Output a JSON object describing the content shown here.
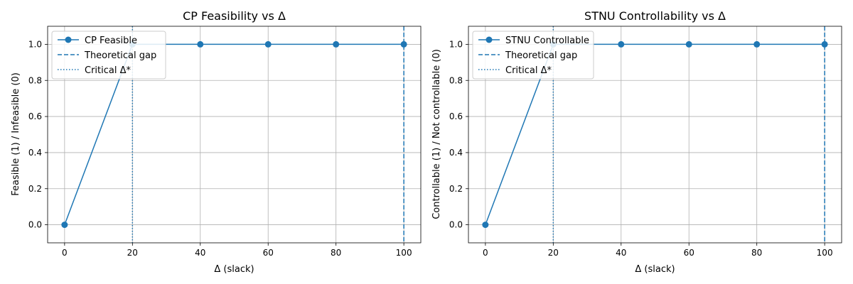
{
  "colors": {
    "series": "#1f77b4",
    "grid": "#b0b0b0",
    "axis": "#000000"
  },
  "chart_data": [
    {
      "type": "line",
      "title": "CP Feasibility vs Δ",
      "xlabel": "Δ (slack)",
      "ylabel": "Feasible (1) / Infeasible (0)",
      "xlim": [
        -5,
        105
      ],
      "ylim": [
        -0.1,
        1.1
      ],
      "xticks": [
        0,
        20,
        40,
        60,
        80,
        100
      ],
      "yticks": [
        "0.0",
        "0.2",
        "0.4",
        "0.6",
        "0.8",
        "1.0"
      ],
      "grid": true,
      "legend_position": "top-left",
      "series": [
        {
          "name": "CP Feasible",
          "x": [
            0,
            20,
            40,
            60,
            80,
            100
          ],
          "y": [
            0,
            1,
            1,
            1,
            1,
            1
          ]
        }
      ],
      "vlines": [
        {
          "name": "Theoretical gap",
          "x": 100,
          "style": "dashed"
        },
        {
          "name": "Critical Δ*",
          "x": 20,
          "style": "dotted"
        }
      ]
    },
    {
      "type": "line",
      "title": "STNU Controllability vs Δ",
      "xlabel": "Δ (slack)",
      "ylabel": "Controllable (1) / Not controllable (0)",
      "xlim": [
        -5,
        105
      ],
      "ylim": [
        -0.1,
        1.1
      ],
      "xticks": [
        0,
        20,
        40,
        60,
        80,
        100
      ],
      "yticks": [
        "0.0",
        "0.2",
        "0.4",
        "0.6",
        "0.8",
        "1.0"
      ],
      "grid": true,
      "legend_position": "top-left",
      "series": [
        {
          "name": "STNU Controllable",
          "x": [
            0,
            20,
            40,
            60,
            80,
            100
          ],
          "y": [
            0,
            1,
            1,
            1,
            1,
            1
          ]
        }
      ],
      "vlines": [
        {
          "name": "Theoretical gap",
          "x": 100,
          "style": "dashed"
        },
        {
          "name": "Critical Δ*",
          "x": 20,
          "style": "dotted"
        }
      ]
    }
  ]
}
